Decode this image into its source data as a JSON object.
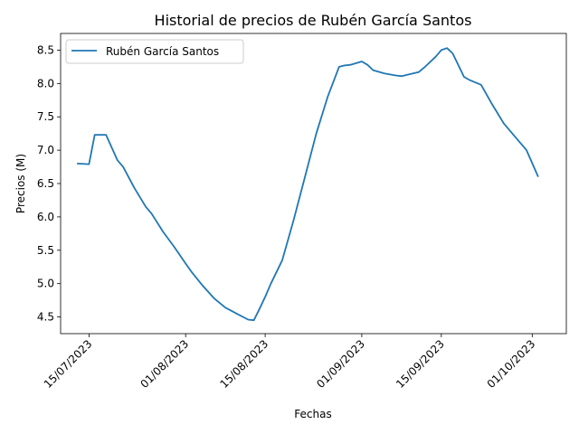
{
  "chart_data": {
    "type": "line",
    "title": "Historial de precios de Rubén García Santos",
    "xlabel": "Fechas",
    "ylabel": "Precios (M)",
    "xlim": [
      "2023-07-10",
      "2023-10-07"
    ],
    "ylim": [
      4.25,
      8.75
    ],
    "x_tick_labels": [
      "15/07/2023",
      "01/08/2023",
      "15/08/2023",
      "01/09/2023",
      "15/09/2023",
      "01/10/2023"
    ],
    "y_tick_labels": [
      "4.5",
      "5.0",
      "5.5",
      "6.0",
      "6.5",
      "7.0",
      "7.5",
      "8.0",
      "8.5"
    ],
    "legend_position": "top-left",
    "grid": false,
    "series": [
      {
        "name": "Rubén García Santos",
        "color": "#1f77b4",
        "x": [
          "2023-07-13",
          "2023-07-15",
          "2023-07-16",
          "2023-07-18",
          "2023-07-20",
          "2023-07-21",
          "2023-07-23",
          "2023-07-25",
          "2023-07-26",
          "2023-07-28",
          "2023-07-30",
          "2023-08-01",
          "2023-08-02",
          "2023-08-04",
          "2023-08-06",
          "2023-08-08",
          "2023-08-10",
          "2023-08-12",
          "2023-08-13",
          "2023-08-14",
          "2023-08-15",
          "2023-08-16",
          "2023-08-18",
          "2023-08-20",
          "2023-08-22",
          "2023-08-24",
          "2023-08-26",
          "2023-08-28",
          "2023-08-29",
          "2023-08-30",
          "2023-09-01",
          "2023-09-02",
          "2023-09-03",
          "2023-09-05",
          "2023-09-07",
          "2023-09-08",
          "2023-09-09",
          "2023-09-10",
          "2023-09-11",
          "2023-09-12",
          "2023-09-14",
          "2023-09-15",
          "2023-09-16",
          "2023-09-17",
          "2023-09-19",
          "2023-09-20",
          "2023-09-22",
          "2023-09-24",
          "2023-09-26",
          "2023-09-28",
          "2023-09-30",
          "2023-10-02"
        ],
        "values": [
          6.8,
          6.79,
          7.23,
          7.23,
          6.85,
          6.75,
          6.43,
          6.15,
          6.05,
          5.78,
          5.55,
          5.3,
          5.18,
          4.97,
          4.78,
          4.64,
          4.55,
          4.46,
          4.45,
          4.62,
          4.8,
          5.0,
          5.35,
          5.95,
          6.6,
          7.25,
          7.8,
          8.25,
          8.27,
          8.28,
          8.33,
          8.28,
          8.2,
          8.15,
          8.12,
          8.11,
          8.13,
          8.15,
          8.17,
          8.24,
          8.4,
          8.5,
          8.53,
          8.45,
          8.1,
          8.05,
          7.98,
          7.68,
          7.4,
          7.2,
          7.0,
          6.61
        ]
      }
    ]
  }
}
